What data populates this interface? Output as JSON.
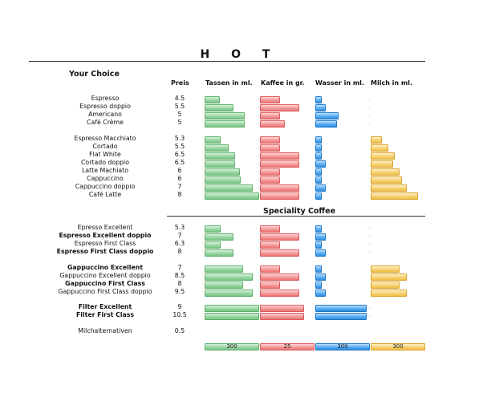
{
  "title": "H O T",
  "your_choice": "Your Choice",
  "speciality": "Speciality Coffee",
  "columns": {
    "preis": "Preis",
    "tassen": "Tassen in ml.",
    "kaffee": "Kaffee in gr.",
    "wasser": "Wasser in ml.",
    "milch": "Milch in ml."
  },
  "rows": [
    {
      "name": "Espresso",
      "price": "4.5",
      "bold": false,
      "tassen": 0.25,
      "kaffee": 0.43,
      "wasser": 0.1,
      "milch": 0
    },
    {
      "name": "Espresso doppio",
      "price": "5.5",
      "bold": false,
      "tassen": 0.52,
      "kaffee": 0.88,
      "wasser": 0.18,
      "milch": 0
    },
    {
      "name": "Americano",
      "price": "5",
      "bold": false,
      "tassen": 0.72,
      "kaffee": 0.43,
      "wasser": 0.43,
      "milch": 0
    },
    {
      "name": "Café Crème",
      "price": "5",
      "bold": false,
      "tassen": 0.72,
      "kaffee": 0.55,
      "wasser": 0.4,
      "milch": 0
    },
    {
      "name": "Espresso Macchiato",
      "price": "5.3",
      "bold": false,
      "tassen": 0.27,
      "kaffee": 0.43,
      "wasser": 0.1,
      "milch": 0.2
    },
    {
      "name": "Cortado",
      "price": "5.5",
      "bold": false,
      "tassen": 0.43,
      "kaffee": 0.43,
      "wasser": 0.1,
      "milch": 0.33
    },
    {
      "name": "Flat White",
      "price": "6.5",
      "bold": false,
      "tassen": 0.55,
      "kaffee": 0.88,
      "wasser": 0.1,
      "milch": 0.45
    },
    {
      "name": "Cortado doppio",
      "price": "6.5",
      "bold": false,
      "tassen": 0.55,
      "kaffee": 0.88,
      "wasser": 0.18,
      "milch": 0.42
    },
    {
      "name": "Latte Machiato",
      "price": "6",
      "bold": false,
      "tassen": 0.63,
      "kaffee": 0.43,
      "wasser": 0.1,
      "milch": 0.55
    },
    {
      "name": "Cappuccino",
      "price": "6",
      "bold": false,
      "tassen": 0.65,
      "kaffee": 0.43,
      "wasser": 0.1,
      "milch": 0.6
    },
    {
      "name": "Cappuccino doppio",
      "price": "7",
      "bold": false,
      "tassen": 0.88,
      "kaffee": 0.88,
      "wasser": 0.18,
      "milch": 0.7
    },
    {
      "name": "Café Latte",
      "price": "8",
      "bold": false,
      "tassen": 1.0,
      "kaffee": 0.88,
      "wasser": 0.1,
      "milch": 0.92
    },
    {
      "name": "Epresso Excellent",
      "price": "5.3",
      "bold": false,
      "tassen": 0.27,
      "kaffee": 0.43,
      "wasser": 0.1,
      "milch": 0
    },
    {
      "name": "Espresso Excellent doppio",
      "price": "7",
      "bold": true,
      "tassen": 0.52,
      "kaffee": 0.88,
      "wasser": 0.18,
      "milch": 0
    },
    {
      "name": "Espresso First Class",
      "price": "6.3",
      "bold": false,
      "tassen": 0.27,
      "kaffee": 0.43,
      "wasser": 0.1,
      "milch": 0
    },
    {
      "name": "Espresso First Class doppio",
      "price": "8",
      "bold": true,
      "tassen": 0.52,
      "kaffee": 0.88,
      "wasser": 0.18,
      "milch": 0
    },
    {
      "name": "Gappuccino Excellent",
      "price": "7",
      "bold": true,
      "tassen": 0.7,
      "kaffee": 0.43,
      "wasser": 0.1,
      "milch": 0.55
    },
    {
      "name": "Gappuccino Excellent doppio",
      "price": "8.5",
      "bold": false,
      "tassen": 0.88,
      "kaffee": 0.88,
      "wasser": 0.18,
      "milch": 0.7
    },
    {
      "name": "Gappuccino First Class",
      "price": "8",
      "bold": true,
      "tassen": 0.7,
      "kaffee": 0.43,
      "wasser": 0.1,
      "milch": 0.55
    },
    {
      "name": "Gappuccino First Class doppio",
      "price": "9.5",
      "bold": false,
      "tassen": 0.88,
      "kaffee": 0.88,
      "wasser": 0.18,
      "milch": 0.7
    },
    {
      "name": "Filter Excellent",
      "price": "9",
      "bold": true,
      "tassen": 1.0,
      "kaffee": 1.0,
      "wasser": 1.0,
      "milch": 0
    },
    {
      "name": "Filter First Class",
      "price": "10.5",
      "bold": true,
      "tassen": 1.0,
      "kaffee": 1.0,
      "wasser": 1.0,
      "milch": 0
    },
    {
      "name": "Milchalternativen",
      "price": "0.5",
      "bold": false,
      "tassen": 0,
      "kaffee": 0,
      "wasser": 0,
      "milch": 0
    }
  ],
  "totals": {
    "tassen": "300",
    "kaffee": "25",
    "wasser": "300",
    "milch": "300"
  },
  "colors": {
    "tassen": "#8fd39b",
    "kaffee": "#f28c8c",
    "wasser": "#3b97e8",
    "milch": "#f5c95a"
  }
}
